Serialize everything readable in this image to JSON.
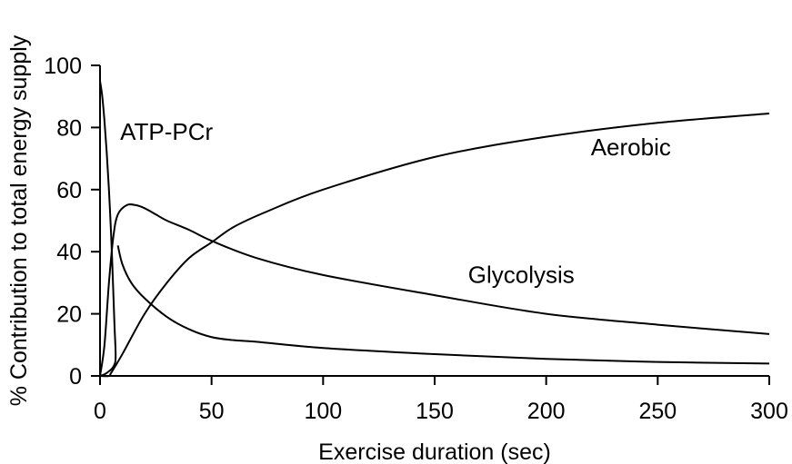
{
  "chart_data": {
    "type": "line",
    "title": "",
    "xlabel": "Exercise duration (sec)",
    "ylabel": "% Contribution to total energy supply",
    "xlim": [
      0,
      300
    ],
    "ylim": [
      0,
      100
    ],
    "xticks": [
      0,
      50,
      100,
      150,
      200,
      250,
      300
    ],
    "yticks": [
      0,
      20,
      40,
      60,
      80,
      100
    ],
    "grid": false,
    "legend": "none",
    "series": [
      {
        "name": "ATP-PCr",
        "x": [
          0,
          1,
          2,
          3,
          4,
          5,
          5.5,
          6,
          6.5,
          7,
          6,
          4,
          2,
          0
        ],
        "y": [
          95,
          90,
          82,
          72,
          60,
          45,
          36,
          26,
          16,
          6,
          3,
          1.5,
          0.5,
          0
        ]
      },
      {
        "name": "Glycolysis",
        "x": [
          0,
          2,
          4,
          6,
          8,
          12,
          16,
          20,
          25,
          30,
          40,
          50,
          70,
          100,
          150,
          200,
          250,
          300
        ],
        "y": [
          0,
          10,
          30,
          45,
          52,
          55,
          55,
          54,
          52,
          50,
          47,
          43.5,
          38,
          32.5,
          26,
          20,
          16.5,
          13.5
        ]
      },
      {
        "name": "Aerobic",
        "x": [
          0,
          4,
          5,
          10,
          20,
          30,
          40,
          50,
          60,
          75,
          100,
          150,
          200,
          250,
          300
        ],
        "y": [
          0,
          0,
          1,
          7,
          20,
          30,
          38,
          43,
          48,
          53,
          60,
          70.5,
          77,
          81.5,
          84.5
        ]
      },
      {
        "name": "",
        "x": [
          8,
          10,
          14,
          20,
          30,
          40,
          50,
          60,
          70,
          100,
          150,
          200,
          250,
          300
        ],
        "y": [
          42,
          36,
          30,
          25,
          19,
          15,
          12.5,
          11.5,
          11,
          9,
          7,
          5.5,
          4.5,
          4
        ]
      }
    ],
    "labels": [
      {
        "text": "ATP-PCr",
        "x": 9,
        "y": 76
      },
      {
        "text": "Aerobic",
        "x": 220,
        "y": 71
      },
      {
        "text": "Glycolysis",
        "x": 165,
        "y": 30
      }
    ]
  }
}
